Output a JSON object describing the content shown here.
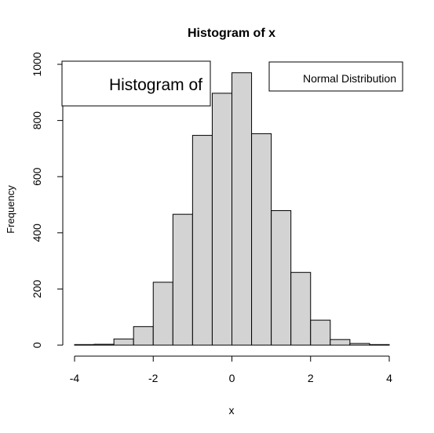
{
  "chart_data": {
    "type": "bar",
    "title": "Histogram of x",
    "xlabel": "x",
    "ylabel": "Frequency",
    "xlim": [
      -4,
      4
    ],
    "ylim": [
      0,
      1000
    ],
    "x_ticks": [
      "-4",
      "-2",
      "0",
      "2",
      "4"
    ],
    "y_ticks": [
      "0",
      "200",
      "400",
      "600",
      "800",
      "1000"
    ],
    "bin_width": 0.5,
    "bins": [
      {
        "start": -4.0,
        "end": -3.5,
        "count": 2
      },
      {
        "start": -3.5,
        "end": -3.0,
        "count": 3
      },
      {
        "start": -3.0,
        "end": -2.5,
        "count": 22
      },
      {
        "start": -2.5,
        "end": -2.0,
        "count": 66
      },
      {
        "start": -2.0,
        "end": -1.5,
        "count": 224
      },
      {
        "start": -1.5,
        "end": -1.0,
        "count": 466
      },
      {
        "start": -1.0,
        "end": -0.5,
        "count": 747
      },
      {
        "start": -0.5,
        "end": 0.0,
        "count": 897
      },
      {
        "start": 0.0,
        "end": 0.5,
        "count": 970
      },
      {
        "start": 0.5,
        "end": 1.0,
        "count": 753
      },
      {
        "start": 1.0,
        "end": 1.5,
        "count": 479
      },
      {
        "start": 1.5,
        "end": 2.0,
        "count": 259
      },
      {
        "start": 2.0,
        "end": 2.5,
        "count": 89
      },
      {
        "start": 2.5,
        "end": 3.0,
        "count": 20
      },
      {
        "start": 3.0,
        "end": 3.5,
        "count": 6
      },
      {
        "start": 3.5,
        "end": 4.0,
        "count": 2
      }
    ],
    "bar_fill": "#d3d3d3",
    "bar_stroke": "#000000",
    "legends": [
      {
        "text": "Histogram of",
        "placement": "top-left"
      },
      {
        "text": "Normal Distribution",
        "placement": "top-right"
      }
    ]
  }
}
